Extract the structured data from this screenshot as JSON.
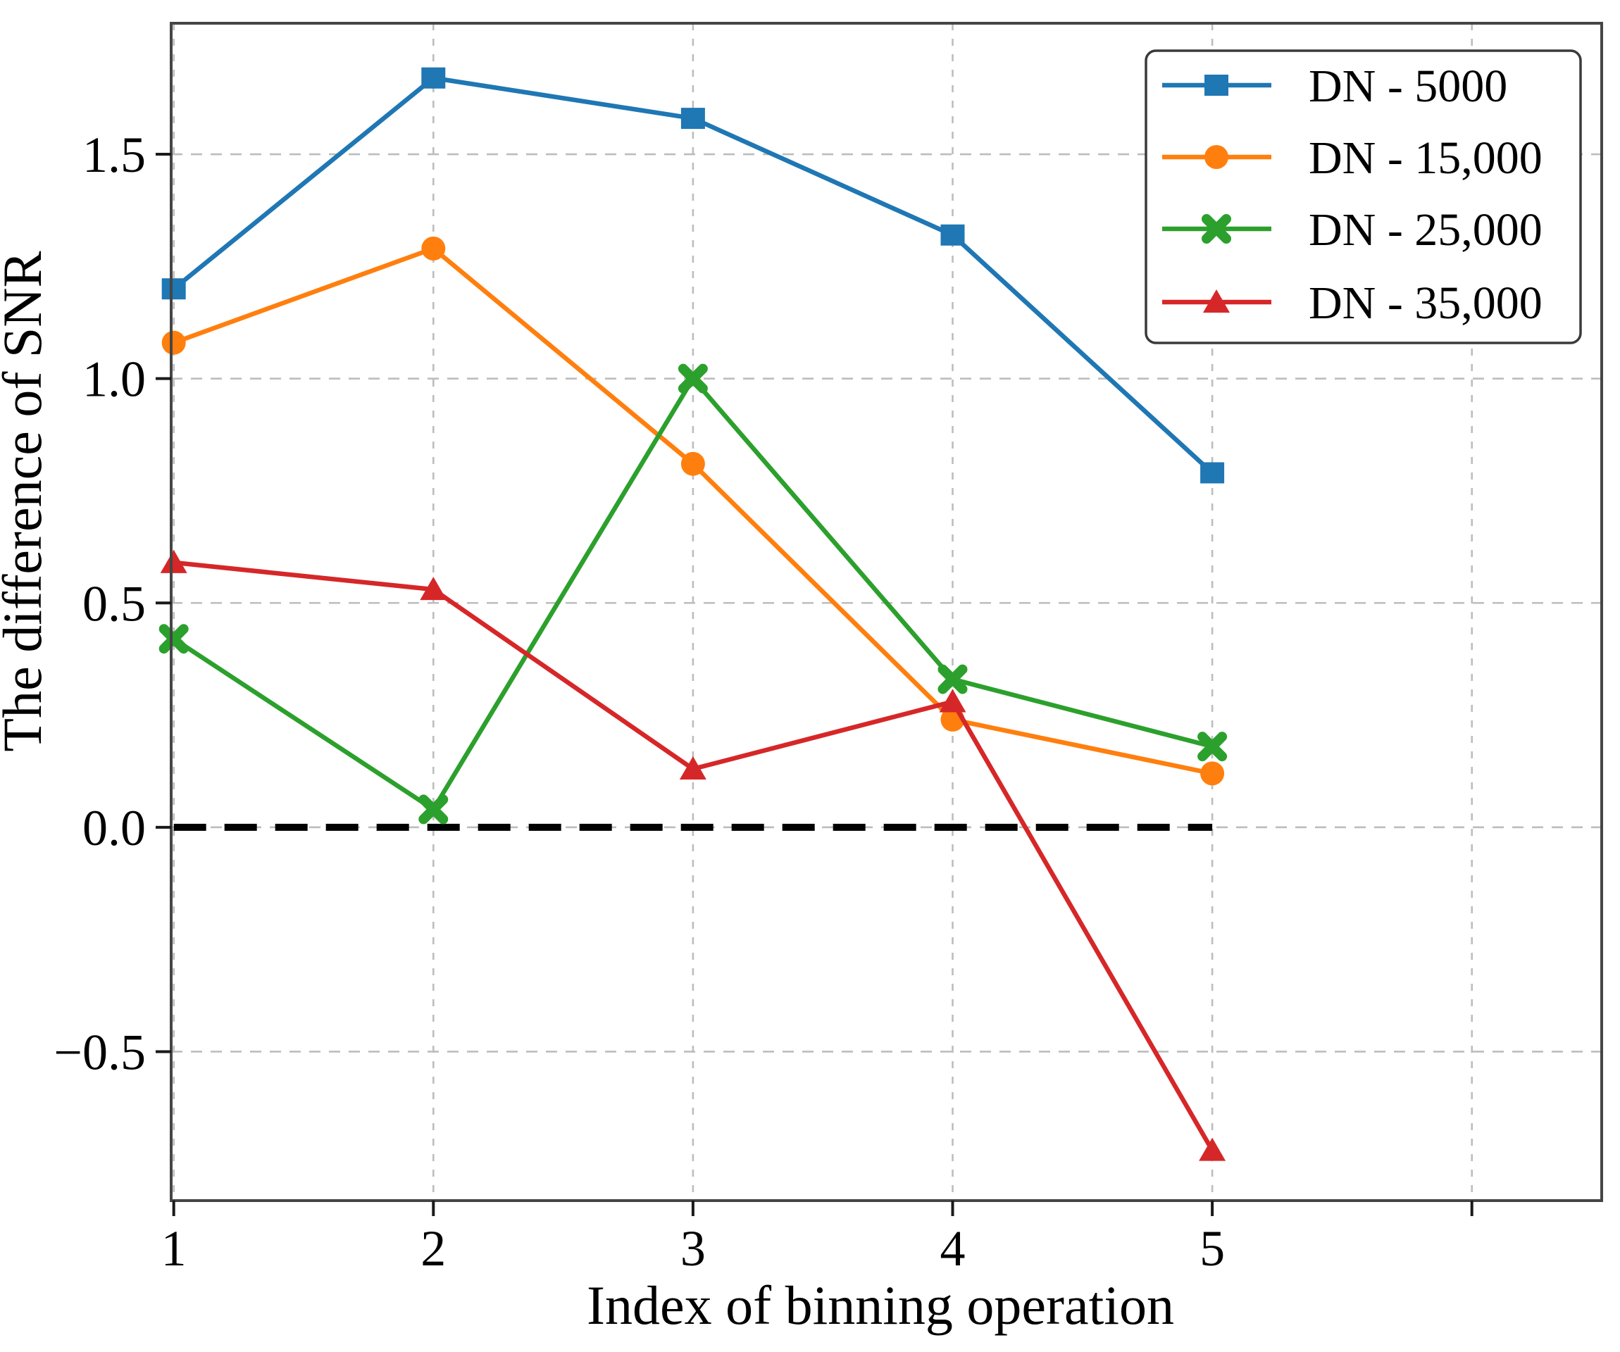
{
  "chart_data": {
    "type": "line",
    "title": "",
    "xlabel": "Index of binning operation",
    "ylabel": "The difference of SNR",
    "x": [
      1,
      2,
      3,
      4,
      5
    ],
    "series": [
      {
        "name": "DN - 5000",
        "color": "#1f77b4",
        "marker": "square",
        "values": [
          1.2,
          1.67,
          1.58,
          1.32,
          0.79
        ]
      },
      {
        "name": "DN - 15,000",
        "color": "#ff7f0e",
        "marker": "circle",
        "values": [
          1.08,
          1.29,
          0.81,
          0.24,
          0.12
        ]
      },
      {
        "name": "DN - 25,000",
        "color": "#2ca02c",
        "marker": "x",
        "values": [
          0.42,
          0.04,
          1.0,
          0.33,
          0.18
        ]
      },
      {
        "name": "DN - 35,000",
        "color": "#d62728",
        "marker": "triangle",
        "values": [
          0.59,
          0.53,
          0.13,
          0.28,
          -0.72
        ]
      }
    ],
    "xticks": [
      1,
      2,
      3,
      4,
      5,
      6
    ],
    "xticklabels": [
      "1",
      "2",
      "3",
      "4",
      "5",
      ""
    ],
    "yticks": [
      1.5,
      1.0,
      0.5,
      0.0,
      -0.5
    ],
    "yticklabels": [
      "1.5",
      "1.0",
      "0.5",
      "0.0",
      "−0.5"
    ],
    "xlim": [
      0.99,
      6.5
    ],
    "ylim": [
      -0.832,
      1.792
    ],
    "grid": true,
    "legend_position": "upper right",
    "zero_line": {
      "value": 0.0,
      "style": "dashed",
      "color": "#000000",
      "x_span": [
        1,
        5
      ]
    }
  },
  "style_colors": {
    "grid": "#bdbdbd",
    "spine": "#454545",
    "tick": "#1a1a1a",
    "text": "#000000",
    "background": "#ffffff",
    "legend_border": "#3a3a3a"
  }
}
